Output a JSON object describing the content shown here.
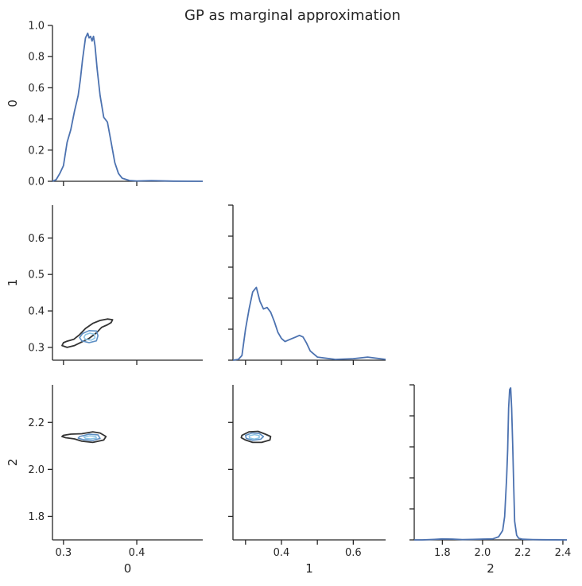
{
  "chart_data": {
    "type": "pairplot-kde",
    "title": "GP as marginal approximation",
    "variables": [
      "0",
      "1",
      "2"
    ],
    "colors": {
      "line": "#4c72b0",
      "outer_contour": "#333333",
      "inner_contour": "#5d8fc4",
      "innermost_contour": "#8dc5e6"
    },
    "xlim": [
      [
        0.285,
        0.49
      ],
      [
        0.265,
        0.69
      ],
      [
        1.66,
        2.42
      ]
    ],
    "ylim": [
      [
        0.285,
        0.49
      ],
      [
        0.265,
        0.69
      ],
      [
        1.7,
        2.36
      ]
    ],
    "diag_ylim": [
      0,
      1.0
    ],
    "diag_yticks": [
      0.0,
      0.2,
      0.4,
      0.6,
      0.8,
      1.0
    ],
    "diag_ytick_labels": [
      "0.0",
      "0.2",
      "0.4",
      "0.6",
      "0.8",
      "1.0"
    ],
    "var_ticks": [
      [
        0.3,
        0.4
      ],
      [
        0.3,
        0.4,
        0.5,
        0.6
      ],
      [
        1.8,
        2.0,
        2.2,
        2.4
      ]
    ],
    "x_tick_labels": [
      [
        "0.3",
        "0.4"
      ],
      [
        "0.4",
        "0.6"
      ],
      [
        "1.8",
        "2.0",
        "2.2",
        "2.4"
      ]
    ],
    "y_tick_labels": [
      [],
      [
        "0.3",
        "0.4",
        "0.5",
        "0.6"
      ],
      [
        "1.8",
        "2.0",
        "2.2"
      ]
    ],
    "diagonal_kde": [
      {
        "variable": "0",
        "x": [
          0.285,
          0.29,
          0.295,
          0.3,
          0.305,
          0.31,
          0.315,
          0.32,
          0.323,
          0.326,
          0.33,
          0.333,
          0.335,
          0.337,
          0.339,
          0.341,
          0.343,
          0.346,
          0.35,
          0.355,
          0.36,
          0.365,
          0.37,
          0.375,
          0.38,
          0.39,
          0.4,
          0.42,
          0.45,
          0.49
        ],
        "y": [
          0.0,
          0.01,
          0.05,
          0.1,
          0.25,
          0.33,
          0.45,
          0.55,
          0.65,
          0.78,
          0.92,
          0.95,
          0.92,
          0.93,
          0.9,
          0.93,
          0.87,
          0.72,
          0.55,
          0.41,
          0.38,
          0.25,
          0.12,
          0.05,
          0.02,
          0.005,
          0.002,
          0.004,
          0.001,
          0.0
        ]
      },
      {
        "variable": "1",
        "x": [
          0.265,
          0.28,
          0.29,
          0.3,
          0.31,
          0.32,
          0.33,
          0.34,
          0.35,
          0.36,
          0.37,
          0.38,
          0.39,
          0.4,
          0.41,
          0.42,
          0.43,
          0.44,
          0.45,
          0.46,
          0.47,
          0.48,
          0.5,
          0.55,
          0.6,
          0.64,
          0.69
        ],
        "y": [
          0.0,
          0.005,
          0.03,
          0.2,
          0.33,
          0.44,
          0.47,
          0.38,
          0.33,
          0.34,
          0.31,
          0.25,
          0.18,
          0.14,
          0.12,
          0.13,
          0.14,
          0.15,
          0.16,
          0.15,
          0.11,
          0.06,
          0.02,
          0.005,
          0.01,
          0.02,
          0.005
        ]
      },
      {
        "variable": "2",
        "x": [
          1.66,
          1.7,
          1.76,
          1.8,
          1.85,
          1.9,
          1.95,
          2.0,
          2.05,
          2.08,
          2.1,
          2.11,
          2.12,
          2.125,
          2.13,
          2.135,
          2.14,
          2.145,
          2.15,
          2.155,
          2.16,
          2.17,
          2.18,
          2.2,
          2.25,
          2.3,
          2.42
        ],
        "y": [
          0.0,
          0.0,
          0.003,
          0.006,
          0.005,
          0.002,
          0.003,
          0.005,
          0.006,
          0.02,
          0.06,
          0.15,
          0.4,
          0.58,
          0.85,
          0.97,
          0.98,
          0.85,
          0.62,
          0.35,
          0.12,
          0.03,
          0.01,
          0.004,
          0.002,
          0.001,
          0.0
        ]
      }
    ],
    "bivariate_kde": [
      {
        "x_var": "0",
        "y_var": "1",
        "contours": [
          {
            "level": "outer",
            "color": "#333333",
            "points": [
              [
                0.305,
                0.3
              ],
              [
                0.315,
                0.305
              ],
              [
                0.325,
                0.315
              ],
              [
                0.335,
                0.325
              ],
              [
                0.345,
                0.34
              ],
              [
                0.352,
                0.355
              ],
              [
                0.36,
                0.362
              ],
              [
                0.365,
                0.368
              ],
              [
                0.367,
                0.376
              ],
              [
                0.36,
                0.378
              ],
              [
                0.35,
                0.374
              ],
              [
                0.34,
                0.366
              ],
              [
                0.33,
                0.352
              ],
              [
                0.322,
                0.335
              ],
              [
                0.314,
                0.322
              ],
              [
                0.305,
                0.317
              ],
              [
                0.3,
                0.313
              ],
              [
                0.298,
                0.305
              ]
            ]
          },
          {
            "level": "inner",
            "color": "#5d8fc4",
            "points": [
              [
                0.325,
                0.318
              ],
              [
                0.335,
                0.313
              ],
              [
                0.345,
                0.318
              ],
              [
                0.347,
                0.332
              ],
              [
                0.345,
                0.345
              ],
              [
                0.335,
                0.346
              ],
              [
                0.326,
                0.338
              ],
              [
                0.322,
                0.327
              ]
            ]
          },
          {
            "level": "innermost",
            "color": "#8dc5e6",
            "points": [
              [
                0.33,
                0.322
              ],
              [
                0.338,
                0.32
              ],
              [
                0.343,
                0.326
              ],
              [
                0.342,
                0.336
              ],
              [
                0.336,
                0.339
              ],
              [
                0.33,
                0.335
              ],
              [
                0.328,
                0.328
              ]
            ]
          }
        ]
      },
      {
        "x_var": "0",
        "y_var": "2",
        "contours": [
          {
            "level": "outer",
            "color": "#333333",
            "points": [
              [
                0.3,
                2.145
              ],
              [
                0.31,
                2.15
              ],
              [
                0.325,
                2.152
              ],
              [
                0.34,
                2.16
              ],
              [
                0.35,
                2.155
              ],
              [
                0.358,
                2.14
              ],
              [
                0.355,
                2.125
              ],
              [
                0.34,
                2.115
              ],
              [
                0.325,
                2.12
              ],
              [
                0.315,
                2.13
              ],
              [
                0.303,
                2.135
              ],
              [
                0.298,
                2.14
              ]
            ]
          },
          {
            "level": "inner",
            "color": "#5d8fc4",
            "points": [
              [
                0.322,
                2.14
              ],
              [
                0.335,
                2.15
              ],
              [
                0.347,
                2.147
              ],
              [
                0.35,
                2.132
              ],
              [
                0.34,
                2.123
              ],
              [
                0.328,
                2.126
              ],
              [
                0.32,
                2.133
              ]
            ]
          },
          {
            "level": "innermost",
            "color": "#8dc5e6",
            "points": [
              [
                0.328,
                2.138
              ],
              [
                0.336,
                2.143
              ],
              [
                0.344,
                2.14
              ],
              [
                0.345,
                2.133
              ],
              [
                0.337,
                2.13
              ],
              [
                0.33,
                2.132
              ]
            ]
          }
        ]
      },
      {
        "x_var": "1",
        "y_var": "2",
        "contours": [
          {
            "level": "outer",
            "color": "#333333",
            "points": [
              [
                0.29,
                2.145
              ],
              [
                0.31,
                2.16
              ],
              [
                0.335,
                2.162
              ],
              [
                0.355,
                2.15
              ],
              [
                0.37,
                2.14
              ],
              [
                0.368,
                2.125
              ],
              [
                0.345,
                2.115
              ],
              [
                0.32,
                2.115
              ],
              [
                0.3,
                2.125
              ],
              [
                0.288,
                2.135
              ]
            ]
          },
          {
            "level": "inner",
            "color": "#5d8fc4",
            "points": [
              [
                0.3,
                2.145
              ],
              [
                0.318,
                2.155
              ],
              [
                0.338,
                2.153
              ],
              [
                0.35,
                2.14
              ],
              [
                0.342,
                2.128
              ],
              [
                0.32,
                2.124
              ],
              [
                0.302,
                2.132
              ]
            ]
          },
          {
            "level": "innermost",
            "color": "#8dc5e6",
            "points": [
              [
                0.31,
                2.143
              ],
              [
                0.325,
                2.148
              ],
              [
                0.338,
                2.144
              ],
              [
                0.338,
                2.134
              ],
              [
                0.324,
                2.129
              ],
              [
                0.311,
                2.134
              ]
            ]
          }
        ]
      }
    ]
  }
}
